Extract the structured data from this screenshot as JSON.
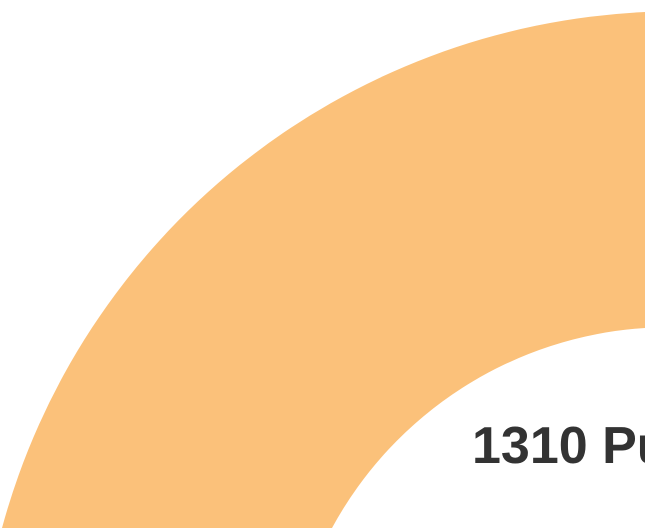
{
  "page": {
    "headline": "1310 Pu"
  },
  "colors": {
    "background": "#ffffff",
    "arc_fill": "#fbc17a",
    "text": "#333333"
  }
}
